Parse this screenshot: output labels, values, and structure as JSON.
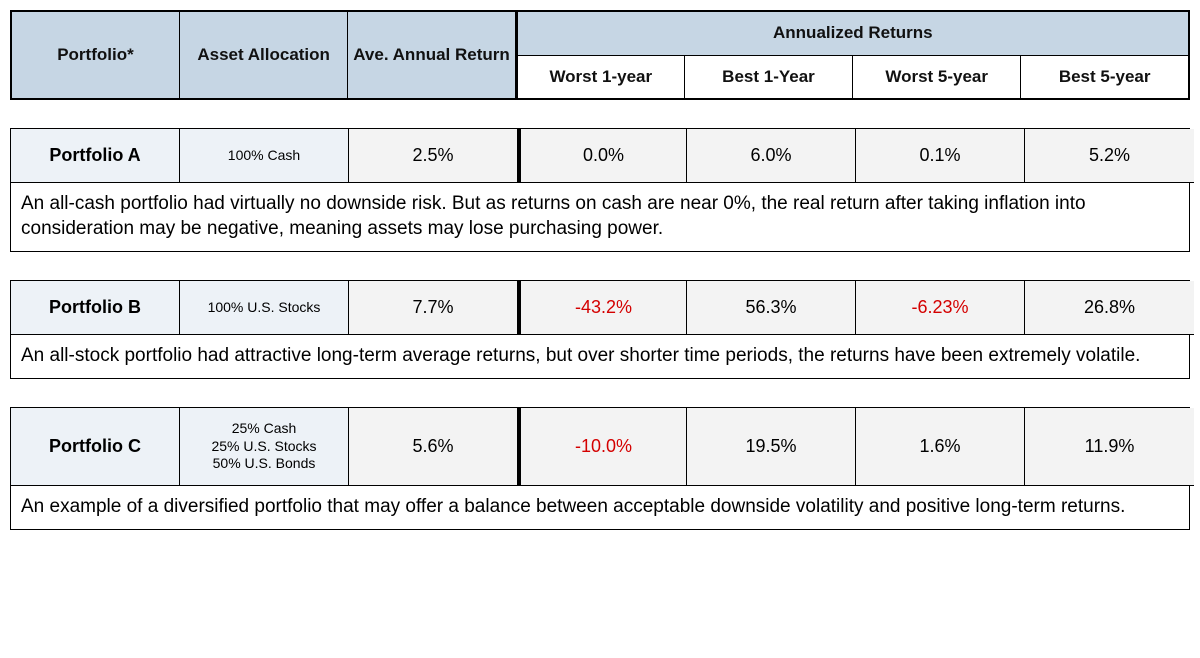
{
  "header": {
    "col_portfolio": "Portfolio*",
    "col_allocation": "Asset Allocation",
    "col_avg": "Ave. Annual Return",
    "group_returns": "Annualized Returns",
    "sub_worst1": "Worst 1-year",
    "sub_best1": "Best 1-Year",
    "sub_worst5": "Worst 5-year",
    "sub_best5": "Best 5-year"
  },
  "colors": {
    "header_bg": "#c6d6e4",
    "light_blue_bg": "#edf2f7",
    "light_gray_bg": "#f3f3f3",
    "negative_text": "#d40000",
    "border": "#000000"
  },
  "portfolios": [
    {
      "name": "Portfolio A",
      "allocation_lines": [
        "100% Cash"
      ],
      "avg_return": "2.5%",
      "worst1": "0.0%",
      "worst1_neg": false,
      "best1": "6.0%",
      "worst5": "0.1%",
      "worst5_neg": false,
      "best5": "5.2%",
      "description": "An all-cash portfolio had virtually no downside risk. But as returns on cash are near 0%, the real return after taking inflation into consideration may be negative, meaning assets may lose purchasing power."
    },
    {
      "name": "Portfolio B",
      "allocation_lines": [
        "100% U.S. Stocks"
      ],
      "avg_return": "7.7%",
      "worst1": "-43.2%",
      "worst1_neg": true,
      "best1": "56.3%",
      "worst5": "-6.23%",
      "worst5_neg": true,
      "best5": "26.8%",
      "description": "An all-stock portfolio had attractive long-term average returns, but over shorter time periods, the returns have been extremely volatile."
    },
    {
      "name": "Portfolio C",
      "allocation_lines": [
        "25% Cash",
        "25% U.S. Stocks",
        "50% U.S. Bonds"
      ],
      "avg_return": "5.6%",
      "worst1": "-10.0%",
      "worst1_neg": true,
      "best1": "19.5%",
      "worst5": "1.6%",
      "worst5_neg": false,
      "best5": "11.9%",
      "description": "An example of a diversified portfolio that may offer a balance between acceptable downside volatility and positive long-term returns."
    }
  ]
}
